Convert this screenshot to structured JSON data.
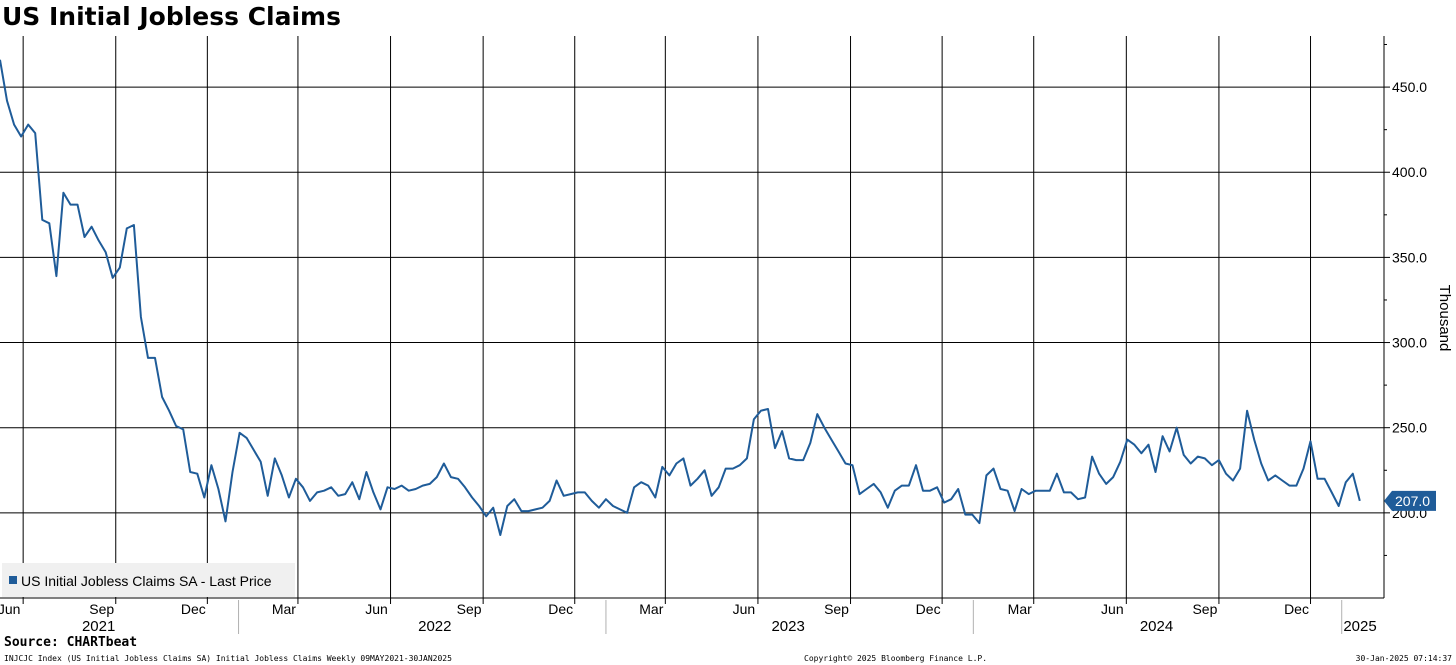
{
  "title": "US Initial Jobless Claims",
  "source": "Source: CHARTbeat",
  "footer": {
    "left": "INJCJC Index (US Initial Jobless Claims SA) Initial Jobless Claims  Weekly 09MAY2021-30JAN2025",
    "center": "Copyright© 2025 Bloomberg Finance L.P.",
    "right": "30-Jan-2025 07:14:37"
  },
  "colors": {
    "series": "#1f5c99",
    "grid": "#000000",
    "last_label_bg": "#1f5c99"
  },
  "chart_data": {
    "type": "line",
    "title": "US Initial Jobless Claims",
    "ylabel": "Thousand",
    "ylim": [
      150,
      480
    ],
    "yticks": [
      "200.0",
      "250.0",
      "300.0",
      "350.0",
      "400.0",
      "450.0"
    ],
    "ytick_values": [
      200,
      250,
      300,
      350,
      400,
      450
    ],
    "grid": true,
    "legend_position": "bottom-left",
    "legend": "US Initial Jobless Claims SA - Last Price",
    "last_value_label": "207.0",
    "x_ticks": [
      {
        "label": "Jun",
        "date": "2021-06-01"
      },
      {
        "label": "Sep",
        "date": "2021-09-01"
      },
      {
        "label": "Dec",
        "date": "2021-12-01"
      },
      {
        "label": "Mar",
        "date": "2022-03-01"
      },
      {
        "label": "Jun",
        "date": "2022-06-01"
      },
      {
        "label": "Sep",
        "date": "2022-09-01"
      },
      {
        "label": "Dec",
        "date": "2022-12-01"
      },
      {
        "label": "Mar",
        "date": "2023-03-01"
      },
      {
        "label": "Jun",
        "date": "2023-06-01"
      },
      {
        "label": "Sep",
        "date": "2023-09-01"
      },
      {
        "label": "Dec",
        "date": "2023-12-01"
      },
      {
        "label": "Mar",
        "date": "2024-03-01"
      },
      {
        "label": "Jun",
        "date": "2024-06-01"
      },
      {
        "label": "Sep",
        "date": "2024-09-01"
      },
      {
        "label": "Dec",
        "date": "2024-12-01"
      }
    ],
    "years": [
      {
        "label": "2021",
        "date": "2021-08-15"
      },
      {
        "label": "2022",
        "date": "2022-07-15"
      },
      {
        "label": "2023",
        "date": "2023-07-01"
      },
      {
        "label": "2024",
        "date": "2024-07-01"
      },
      {
        "label": "2025",
        "date": "2025-01-15"
      }
    ],
    "year_separators": [
      "2022-01-01",
      "2023-01-01",
      "2024-01-01",
      "2025-01-01"
    ],
    "x_range": [
      "2021-05-09",
      "2025-02-12"
    ],
    "series": [
      {
        "name": "US Initial Jobless Claims SA - Last Price",
        "start": "2021-05-09",
        "interval_days": 7,
        "values": [
          466,
          442,
          428,
          421,
          428,
          423,
          372,
          370,
          339,
          388,
          381,
          381,
          362,
          368,
          360,
          353,
          338,
          344,
          367,
          369,
          315,
          291,
          291,
          268,
          260,
          251,
          249,
          224,
          223,
          209,
          228,
          214,
          195,
          224,
          247,
          244,
          237,
          230,
          210,
          232,
          222,
          209,
          220,
          215,
          207,
          212,
          213,
          215,
          210,
          211,
          218,
          208,
          224,
          212,
          202,
          215,
          214,
          216,
          213,
          214,
          216,
          217,
          221,
          229,
          221,
          220,
          215,
          209,
          204,
          198,
          203,
          187,
          204,
          208,
          201,
          201,
          202,
          203,
          207,
          219,
          210,
          211,
          212,
          212,
          207,
          203,
          208,
          204,
          202,
          200,
          215,
          218,
          216,
          209,
          227,
          222,
          229,
          232,
          216,
          220,
          225,
          210,
          215,
          226,
          226,
          228,
          232,
          255,
          260,
          261,
          238,
          248,
          232,
          231,
          231,
          241,
          258,
          250,
          243,
          236,
          229,
          228,
          211,
          214,
          217,
          212,
          203,
          213,
          216,
          216,
          228,
          213,
          213,
          215,
          206,
          208,
          214,
          199,
          199,
          194,
          222,
          226,
          214,
          213,
          201,
          214,
          211,
          213,
          213,
          213,
          223,
          212,
          212,
          208,
          209,
          233,
          223,
          217,
          221,
          230,
          243,
          240,
          235,
          240,
          224,
          245,
          236,
          250,
          234,
          229,
          233,
          232,
          228,
          231,
          223,
          219,
          226,
          260,
          243,
          229,
          219,
          222,
          219,
          216,
          216,
          226,
          242,
          220,
          220,
          212,
          204,
          218,
          223,
          207
        ]
      }
    ]
  }
}
